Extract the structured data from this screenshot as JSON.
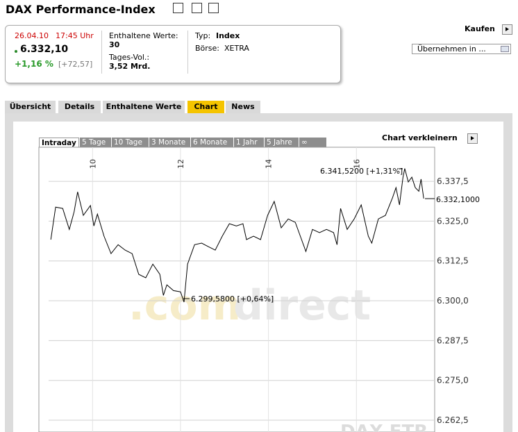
{
  "header": {
    "title": "DAX Performance-Index"
  },
  "quote": {
    "date": "26.04.10",
    "time": "17:45 Uhr",
    "price": "6.332,10",
    "change_pct": "+1,16 %",
    "change_abs": "[+72,57]",
    "constituents_label": "Enthaltene Werte:",
    "constituents": "30",
    "volume_label": "Tages-Vol.:",
    "volume": "3,52 Mrd.",
    "type_label": "Typ:",
    "type": "Index",
    "exchange_label": "Börse:",
    "exchange": "XETRA"
  },
  "actions": {
    "buy": "Kaufen",
    "select": "Übernehmen in ..."
  },
  "tabs": [
    "Übersicht",
    "Details",
    "Enthaltene Werte",
    "Chart",
    "News"
  ],
  "chart_controls": {
    "shrink": "Chart verkleinern",
    "ranges": [
      "Intraday",
      "5 Tage",
      "10 Tage",
      "3 Monate",
      "6 Monate",
      "1 Jahr",
      "5 Jahre",
      "∞"
    ]
  },
  "chart_data": {
    "type": "line",
    "color": "#000000",
    "grid": true,
    "x": [
      9.05,
      9.16,
      9.32,
      9.47,
      9.58,
      9.66,
      9.79,
      9.95,
      10.03,
      10.11,
      10.26,
      10.42,
      10.58,
      10.74,
      10.9,
      11.05,
      11.21,
      11.37,
      11.53,
      11.61,
      11.69,
      11.84,
      12.0,
      12.08,
      12.16,
      12.32,
      12.48,
      12.63,
      12.79,
      12.95,
      13.11,
      13.27,
      13.42,
      13.5,
      13.66,
      13.82,
      13.98,
      14.13,
      14.29,
      14.45,
      14.61,
      14.85,
      15.0,
      15.16,
      15.32,
      15.48,
      15.56,
      15.64,
      15.79,
      15.95,
      16.11,
      16.27,
      16.35,
      16.5,
      16.66,
      16.82,
      16.9,
      16.98,
      17.06,
      17.1,
      17.18,
      17.26,
      17.34,
      17.42,
      17.47,
      17.53
    ],
    "values": [
      6319.2,
      6329.4,
      6329.0,
      6322.4,
      6327.9,
      6334.2,
      6326.8,
      6329.9,
      6323.5,
      6327.2,
      6320.3,
      6314.8,
      6317.6,
      6315.9,
      6314.8,
      6308.3,
      6307.2,
      6311.5,
      6308.3,
      6301.7,
      6305.0,
      6303.2,
      6302.8,
      6299.58,
      6311.5,
      6317.6,
      6318.1,
      6317.0,
      6315.9,
      6320.3,
      6324.2,
      6323.5,
      6324.2,
      6319.2,
      6320.3,
      6319.2,
      6326.8,
      6331.2,
      6322.9,
      6325.7,
      6324.6,
      6315.5,
      6322.4,
      6321.4,
      6322.4,
      6321.4,
      6317.6,
      6329.0,
      6322.4,
      6325.7,
      6330.1,
      6320.3,
      6318.1,
      6325.7,
      6326.8,
      6332.3,
      6335.5,
      6330.1,
      6338.8,
      6341.52,
      6337.3,
      6338.8,
      6335.5,
      6334.4,
      6338.2,
      6332.1
    ],
    "xlim": [
      9,
      17.78
    ],
    "xticks": [
      10,
      12,
      14,
      16
    ],
    "ylim": [
      6258.8,
      6348.2
    ],
    "yticks": [
      {
        "value": 6262.5,
        "label": "6.262,5"
      },
      {
        "value": 6275,
        "label": "6.275,0"
      },
      {
        "value": 6287.5,
        "label": "6.287,5"
      },
      {
        "value": 6300,
        "label": "6.300,0"
      },
      {
        "value": 6312.5,
        "label": "6.312,5"
      },
      {
        "value": 6325,
        "label": "6.325,0"
      },
      {
        "value": 6337.5,
        "label": "6.337,5"
      }
    ],
    "annotations": [
      "6.341,5200 [+1,31%]",
      "6.299,5800 [+0,64%]",
      "6.332,1000"
    ],
    "watermark": [
      ".com",
      "direct",
      "DAX ETR"
    ]
  }
}
